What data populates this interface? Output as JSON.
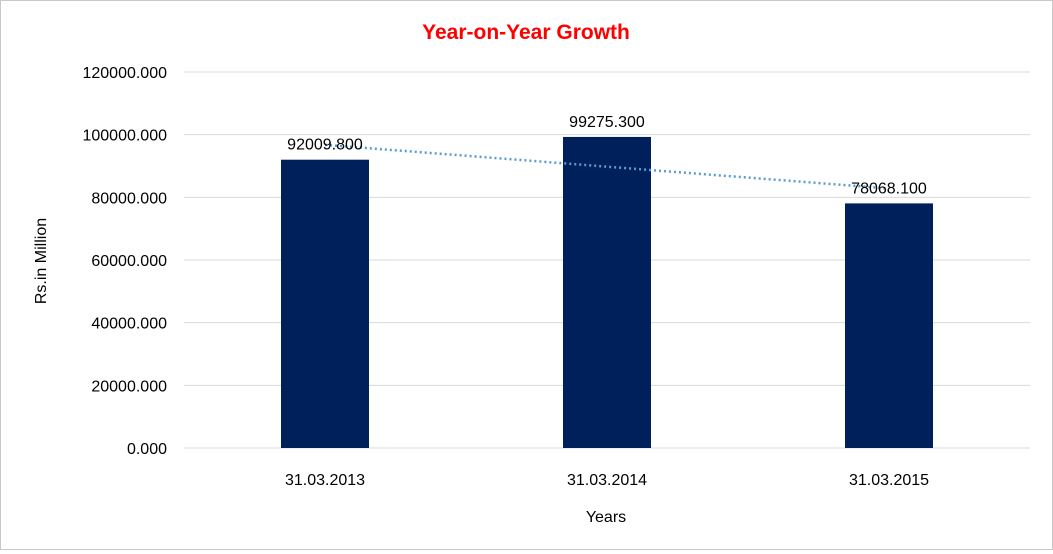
{
  "chart_data": {
    "type": "bar",
    "title": "Year-on-Year Growth",
    "xlabel": "Years",
    "ylabel": "Rs.in Million",
    "categories": [
      "31.03.2013",
      "31.03.2014",
      "31.03.2015"
    ],
    "values": [
      92009.8,
      99275.3,
      78068.1
    ],
    "data_labels": [
      "92009.800",
      "99275.300",
      "78068.100"
    ],
    "ylim": [
      0,
      120000
    ],
    "yticks": [
      0,
      20000,
      40000,
      60000,
      80000,
      100000,
      120000
    ],
    "ytick_labels": [
      "0.000",
      "20000.000",
      "40000.000",
      "60000.000",
      "80000.000",
      "100000.000",
      "120000.000"
    ],
    "trendline": {
      "type": "linear",
      "style": "dotted"
    },
    "grid": "horizontal",
    "legend": "none",
    "colors": {
      "bar": "#00205b",
      "title": "#ff0000",
      "trendline": "#5b9bd5",
      "grid": "#d9d9d9"
    }
  }
}
